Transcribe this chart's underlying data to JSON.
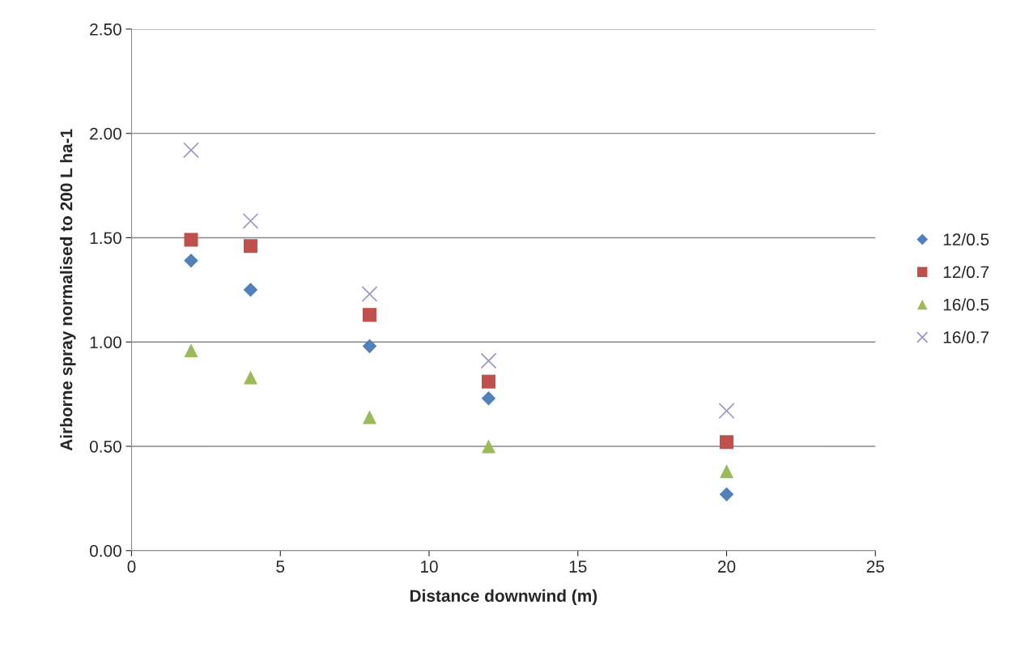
{
  "chart_data": {
    "type": "scatter",
    "xlabel": "Distance downwind (m)",
    "ylabel": "Airborne spray normalised to 200 L ha-1",
    "x": [
      2,
      4,
      8,
      12,
      20
    ],
    "xlim": [
      0,
      25
    ],
    "xticks": [
      0,
      5,
      10,
      15,
      20,
      25
    ],
    "ylim": [
      0,
      2.5
    ],
    "yticks": [
      {
        "value": 0,
        "label": "0.00"
      },
      {
        "value": 0.5,
        "label": "0.50"
      },
      {
        "value": 1,
        "label": "1.00"
      },
      {
        "value": 1.5,
        "label": "1.50"
      },
      {
        "value": 2,
        "label": "2.00"
      },
      {
        "value": 2.5,
        "label": "2.50"
      }
    ],
    "grid": "y",
    "legend": "right",
    "series": [
      {
        "name": "12/0.5",
        "color": "#4f81bd",
        "marker": "diamond",
        "values": [
          1.39,
          1.25,
          0.98,
          0.73,
          0.27
        ]
      },
      {
        "name": "12/0.7",
        "color": "#c0504d",
        "marker": "square",
        "values": [
          1.49,
          1.46,
          1.13,
          0.81,
          0.52
        ]
      },
      {
        "name": "16/0.5",
        "color": "#9bbb59",
        "marker": "triangle",
        "values": [
          0.96,
          0.83,
          0.64,
          0.5,
          0.38
        ]
      },
      {
        "name": "16/0.7",
        "color": "#a091c8",
        "marker": "cross",
        "values": [
          1.92,
          1.58,
          1.23,
          0.91,
          0.67
        ]
      }
    ]
  }
}
